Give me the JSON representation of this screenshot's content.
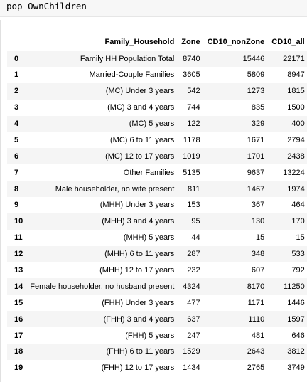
{
  "code": {
    "text": "pop_OwnChildren"
  },
  "table": {
    "columns": [
      "",
      "Family_Household",
      "Zone",
      "CD10_nonZone",
      "CD10_all"
    ],
    "rows": [
      {
        "index": "0",
        "family_household": "Family HH Population Total",
        "zone": "8740",
        "cd10_nonzone": "15446",
        "cd10_all": "22171"
      },
      {
        "index": "1",
        "family_household": "Married-Couple Families",
        "zone": "3605",
        "cd10_nonzone": "5809",
        "cd10_all": "8947"
      },
      {
        "index": "2",
        "family_household": "(MC) Under 3 years",
        "zone": "542",
        "cd10_nonzone": "1273",
        "cd10_all": "1815"
      },
      {
        "index": "3",
        "family_household": "(MC) 3 and 4 years",
        "zone": "744",
        "cd10_nonzone": "835",
        "cd10_all": "1500"
      },
      {
        "index": "4",
        "family_household": "(MC) 5 years",
        "zone": "122",
        "cd10_nonzone": "329",
        "cd10_all": "400"
      },
      {
        "index": "5",
        "family_household": "(MC) 6 to 11 years",
        "zone": "1178",
        "cd10_nonzone": "1671",
        "cd10_all": "2794"
      },
      {
        "index": "6",
        "family_household": "(MC) 12 to 17 years",
        "zone": "1019",
        "cd10_nonzone": "1701",
        "cd10_all": "2438"
      },
      {
        "index": "7",
        "family_household": "Other Families",
        "zone": "5135",
        "cd10_nonzone": "9637",
        "cd10_all": "13224"
      },
      {
        "index": "8",
        "family_household": "Male householder, no wife present",
        "zone": "811",
        "cd10_nonzone": "1467",
        "cd10_all": "1974"
      },
      {
        "index": "9",
        "family_household": "(MHH) Under 3 years",
        "zone": "153",
        "cd10_nonzone": "367",
        "cd10_all": "464"
      },
      {
        "index": "10",
        "family_household": "(MHH) 3 and 4 years",
        "zone": "95",
        "cd10_nonzone": "130",
        "cd10_all": "170"
      },
      {
        "index": "11",
        "family_household": "(MHH) 5 years",
        "zone": "44",
        "cd10_nonzone": "15",
        "cd10_all": "15"
      },
      {
        "index": "12",
        "family_household": "(MHH) 6 to 11 years",
        "zone": "287",
        "cd10_nonzone": "348",
        "cd10_all": "533"
      },
      {
        "index": "13",
        "family_household": "(MHH) 12 to 17 years",
        "zone": "232",
        "cd10_nonzone": "607",
        "cd10_all": "792"
      },
      {
        "index": "14",
        "family_household": "Female householder, no husband present",
        "zone": "4324",
        "cd10_nonzone": "8170",
        "cd10_all": "11250"
      },
      {
        "index": "15",
        "family_household": "(FHH) Under 3 years",
        "zone": "477",
        "cd10_nonzone": "1171",
        "cd10_all": "1446"
      },
      {
        "index": "16",
        "family_household": "(FHH) 3 and 4 years",
        "zone": "637",
        "cd10_nonzone": "1110",
        "cd10_all": "1597"
      },
      {
        "index": "17",
        "family_household": "(FHH) 5 years",
        "zone": "247",
        "cd10_nonzone": "481",
        "cd10_all": "646"
      },
      {
        "index": "18",
        "family_household": "(FHH) 6 to 11 years",
        "zone": "1529",
        "cd10_nonzone": "2643",
        "cd10_all": "3812"
      },
      {
        "index": "19",
        "family_household": "(FHH) 12 to 17 years",
        "zone": "1434",
        "cd10_nonzone": "2765",
        "cd10_all": "3749"
      }
    ]
  },
  "colors": {
    "code_background": "#f7f7f7",
    "row_stripe": "#f5f5f5",
    "header_rule": "#000000"
  }
}
